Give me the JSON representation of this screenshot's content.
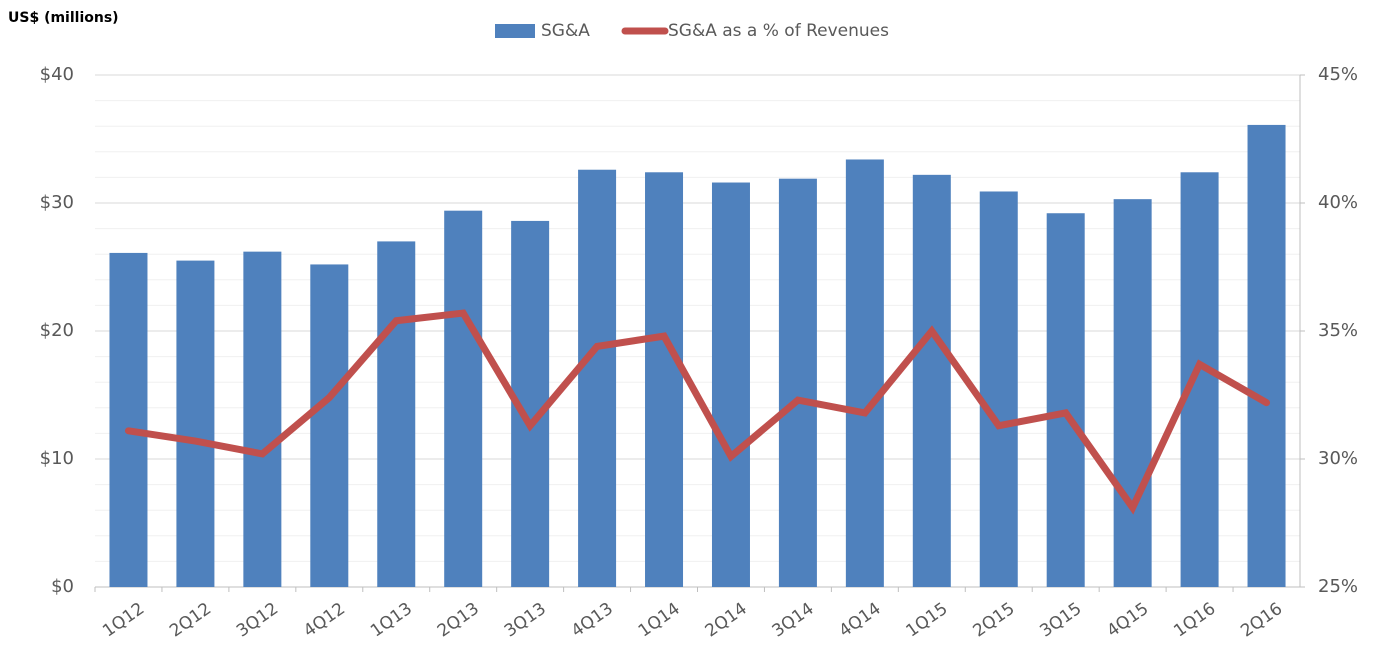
{
  "chart_data": {
    "type": "bar-line",
    "axis_title": "US$ (millions)",
    "categories": [
      "1Q12",
      "2Q12",
      "3Q12",
      "4Q12",
      "1Q13",
      "2Q13",
      "3Q13",
      "4Q13",
      "1Q14",
      "2Q14",
      "3Q14",
      "4Q14",
      "1Q15",
      "2Q15",
      "3Q15",
      "4Q15",
      "1Q16",
      "2Q16"
    ],
    "series": [
      {
        "name": "SG&A",
        "type": "bar",
        "color": "#4f81bd",
        "values": [
          26.1,
          25.5,
          26.2,
          25.2,
          27.0,
          29.4,
          28.6,
          32.6,
          32.4,
          31.6,
          31.9,
          33.4,
          32.2,
          30.9,
          29.2,
          30.3,
          32.4,
          36.1
        ]
      },
      {
        "name": "SG&A as a % of Revenues",
        "type": "line",
        "axis": "y2",
        "color": "#c0504d",
        "values": [
          31.1,
          30.7,
          30.2,
          32.4,
          35.4,
          35.7,
          31.3,
          34.4,
          34.8,
          30.1,
          32.3,
          31.8,
          35.0,
          31.3,
          31.8,
          28.1,
          33.7,
          32.2
        ]
      }
    ],
    "ylim": [
      0,
      40
    ],
    "yticks": [
      {
        "value": 0,
        "label": "$0"
      },
      {
        "value": 10,
        "label": "$10"
      },
      {
        "value": 20,
        "label": "$20"
      },
      {
        "value": 30,
        "label": "$30"
      },
      {
        "value": 40,
        "label": "$40"
      }
    ],
    "y2lim": [
      25,
      45
    ],
    "y2ticks": [
      {
        "value": 25,
        "label": "25%"
      },
      {
        "value": 30,
        "label": "30%"
      },
      {
        "value": 35,
        "label": "35%"
      },
      {
        "value": 40,
        "label": "40%"
      },
      {
        "value": 45,
        "label": "45%"
      }
    ],
    "grid": true,
    "minor_grid": true,
    "legend": "top"
  }
}
